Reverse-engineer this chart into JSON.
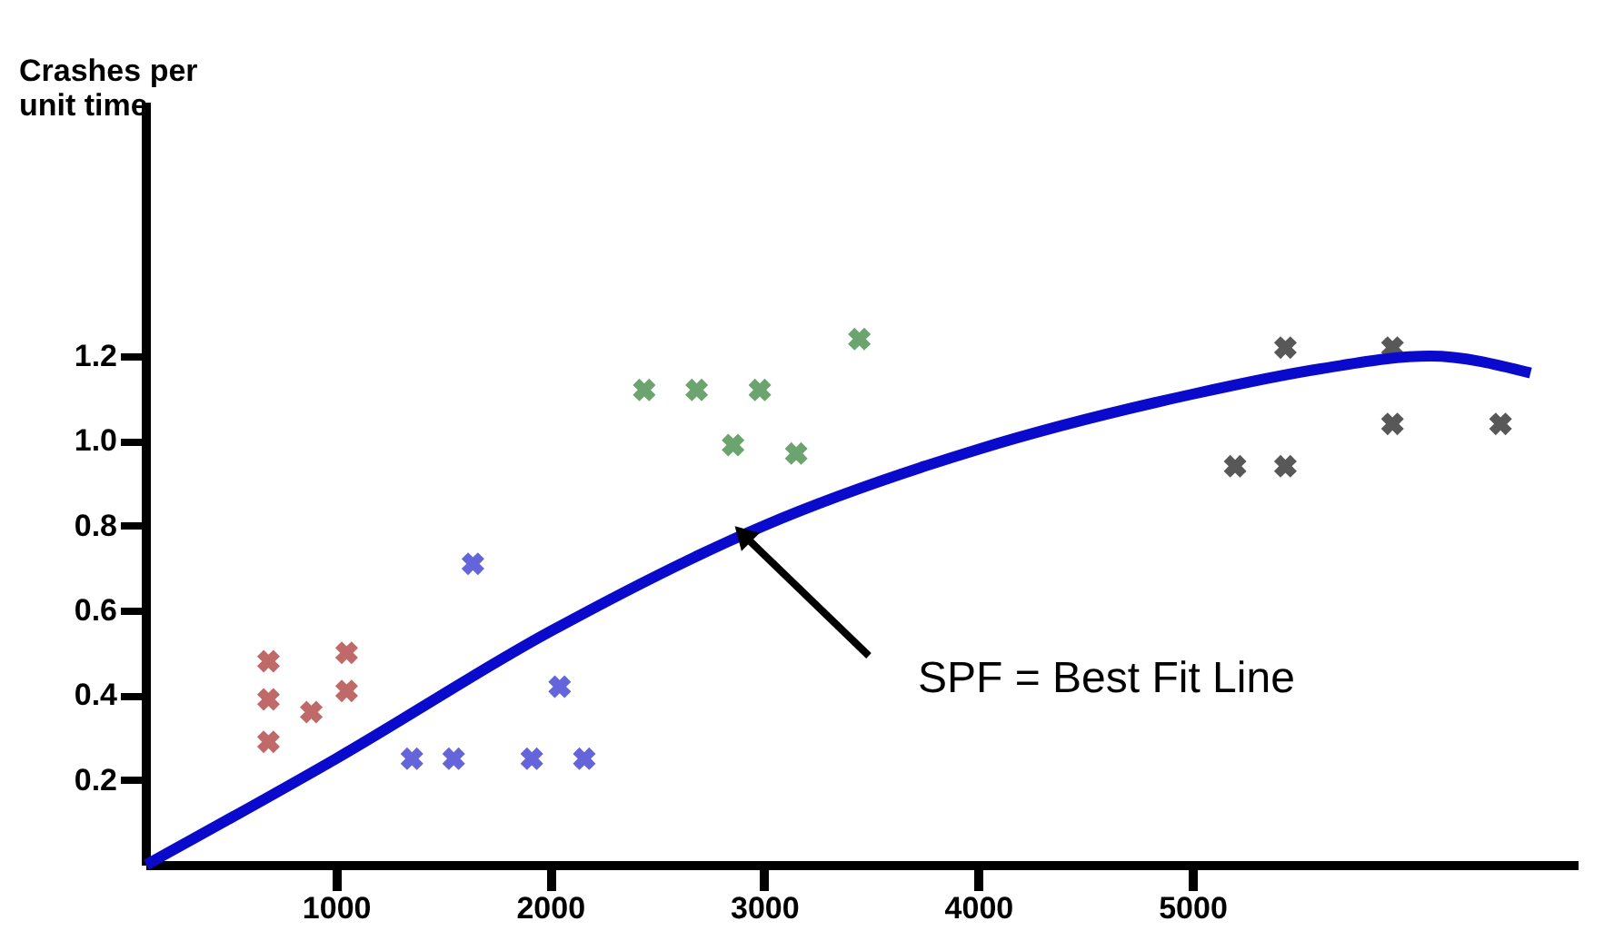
{
  "chart_data": {
    "type": "scatter",
    "ylabel": "Crashes per unit time",
    "xlim": [
      110,
      6800
    ],
    "ylim": [
      0,
      1.8
    ],
    "xticks": [
      1000,
      2000,
      3000,
      4000,
      5000
    ],
    "yticks": [
      {
        "value": 0.2,
        "label": "0.2"
      },
      {
        "value": 0.4,
        "label": "0.4"
      },
      {
        "value": 0.6,
        "label": "0.6"
      },
      {
        "value": 0.8,
        "label": "0.8"
      },
      {
        "value": 1.0,
        "label": "1.0"
      },
      {
        "value": 1.2,
        "label": "1.2"
      }
    ],
    "grid": false,
    "marker": "cross",
    "series": [
      {
        "color": "#a52a2a",
        "x": [
          685,
          685,
          685,
          885,
          1050,
          1050
        ],
        "values": [
          0.48,
          0.39,
          0.29,
          0.36,
          0.5,
          0.41
        ]
      },
      {
        "color": "#2222cc",
        "x": [
          1640,
          2045,
          1355,
          1550,
          1915,
          2160
        ],
        "values": [
          0.71,
          0.42,
          0.25,
          0.25,
          0.25,
          0.25
        ]
      },
      {
        "color": "#2e7d32",
        "x": [
          2440,
          2685,
          2980,
          2855,
          3150,
          3445
        ],
        "values": [
          1.12,
          1.12,
          1.12,
          0.99,
          0.97,
          1.24
        ]
      },
      {
        "color": "#111111",
        "x": [
          5435,
          5935,
          5200,
          5435,
          5935,
          6440
        ],
        "values": [
          1.22,
          1.22,
          0.94,
          0.94,
          1.04,
          1.04
        ]
      },
      {
        "type": "line",
        "marker": "none",
        "color": "#0a0acd",
        "x": [
          115,
          1000,
          2000,
          3000,
          4000,
          5000,
          5600,
          6110,
          6580
        ],
        "values": [
          0,
          0.25,
          0.55,
          0.8,
          0.98,
          1.11,
          1.17,
          1.2,
          1.16
        ]
      }
    ],
    "annotations": [
      {
        "text": "SPF = Best Fit Line",
        "x": 2900,
        "y": 0.78
      }
    ]
  }
}
